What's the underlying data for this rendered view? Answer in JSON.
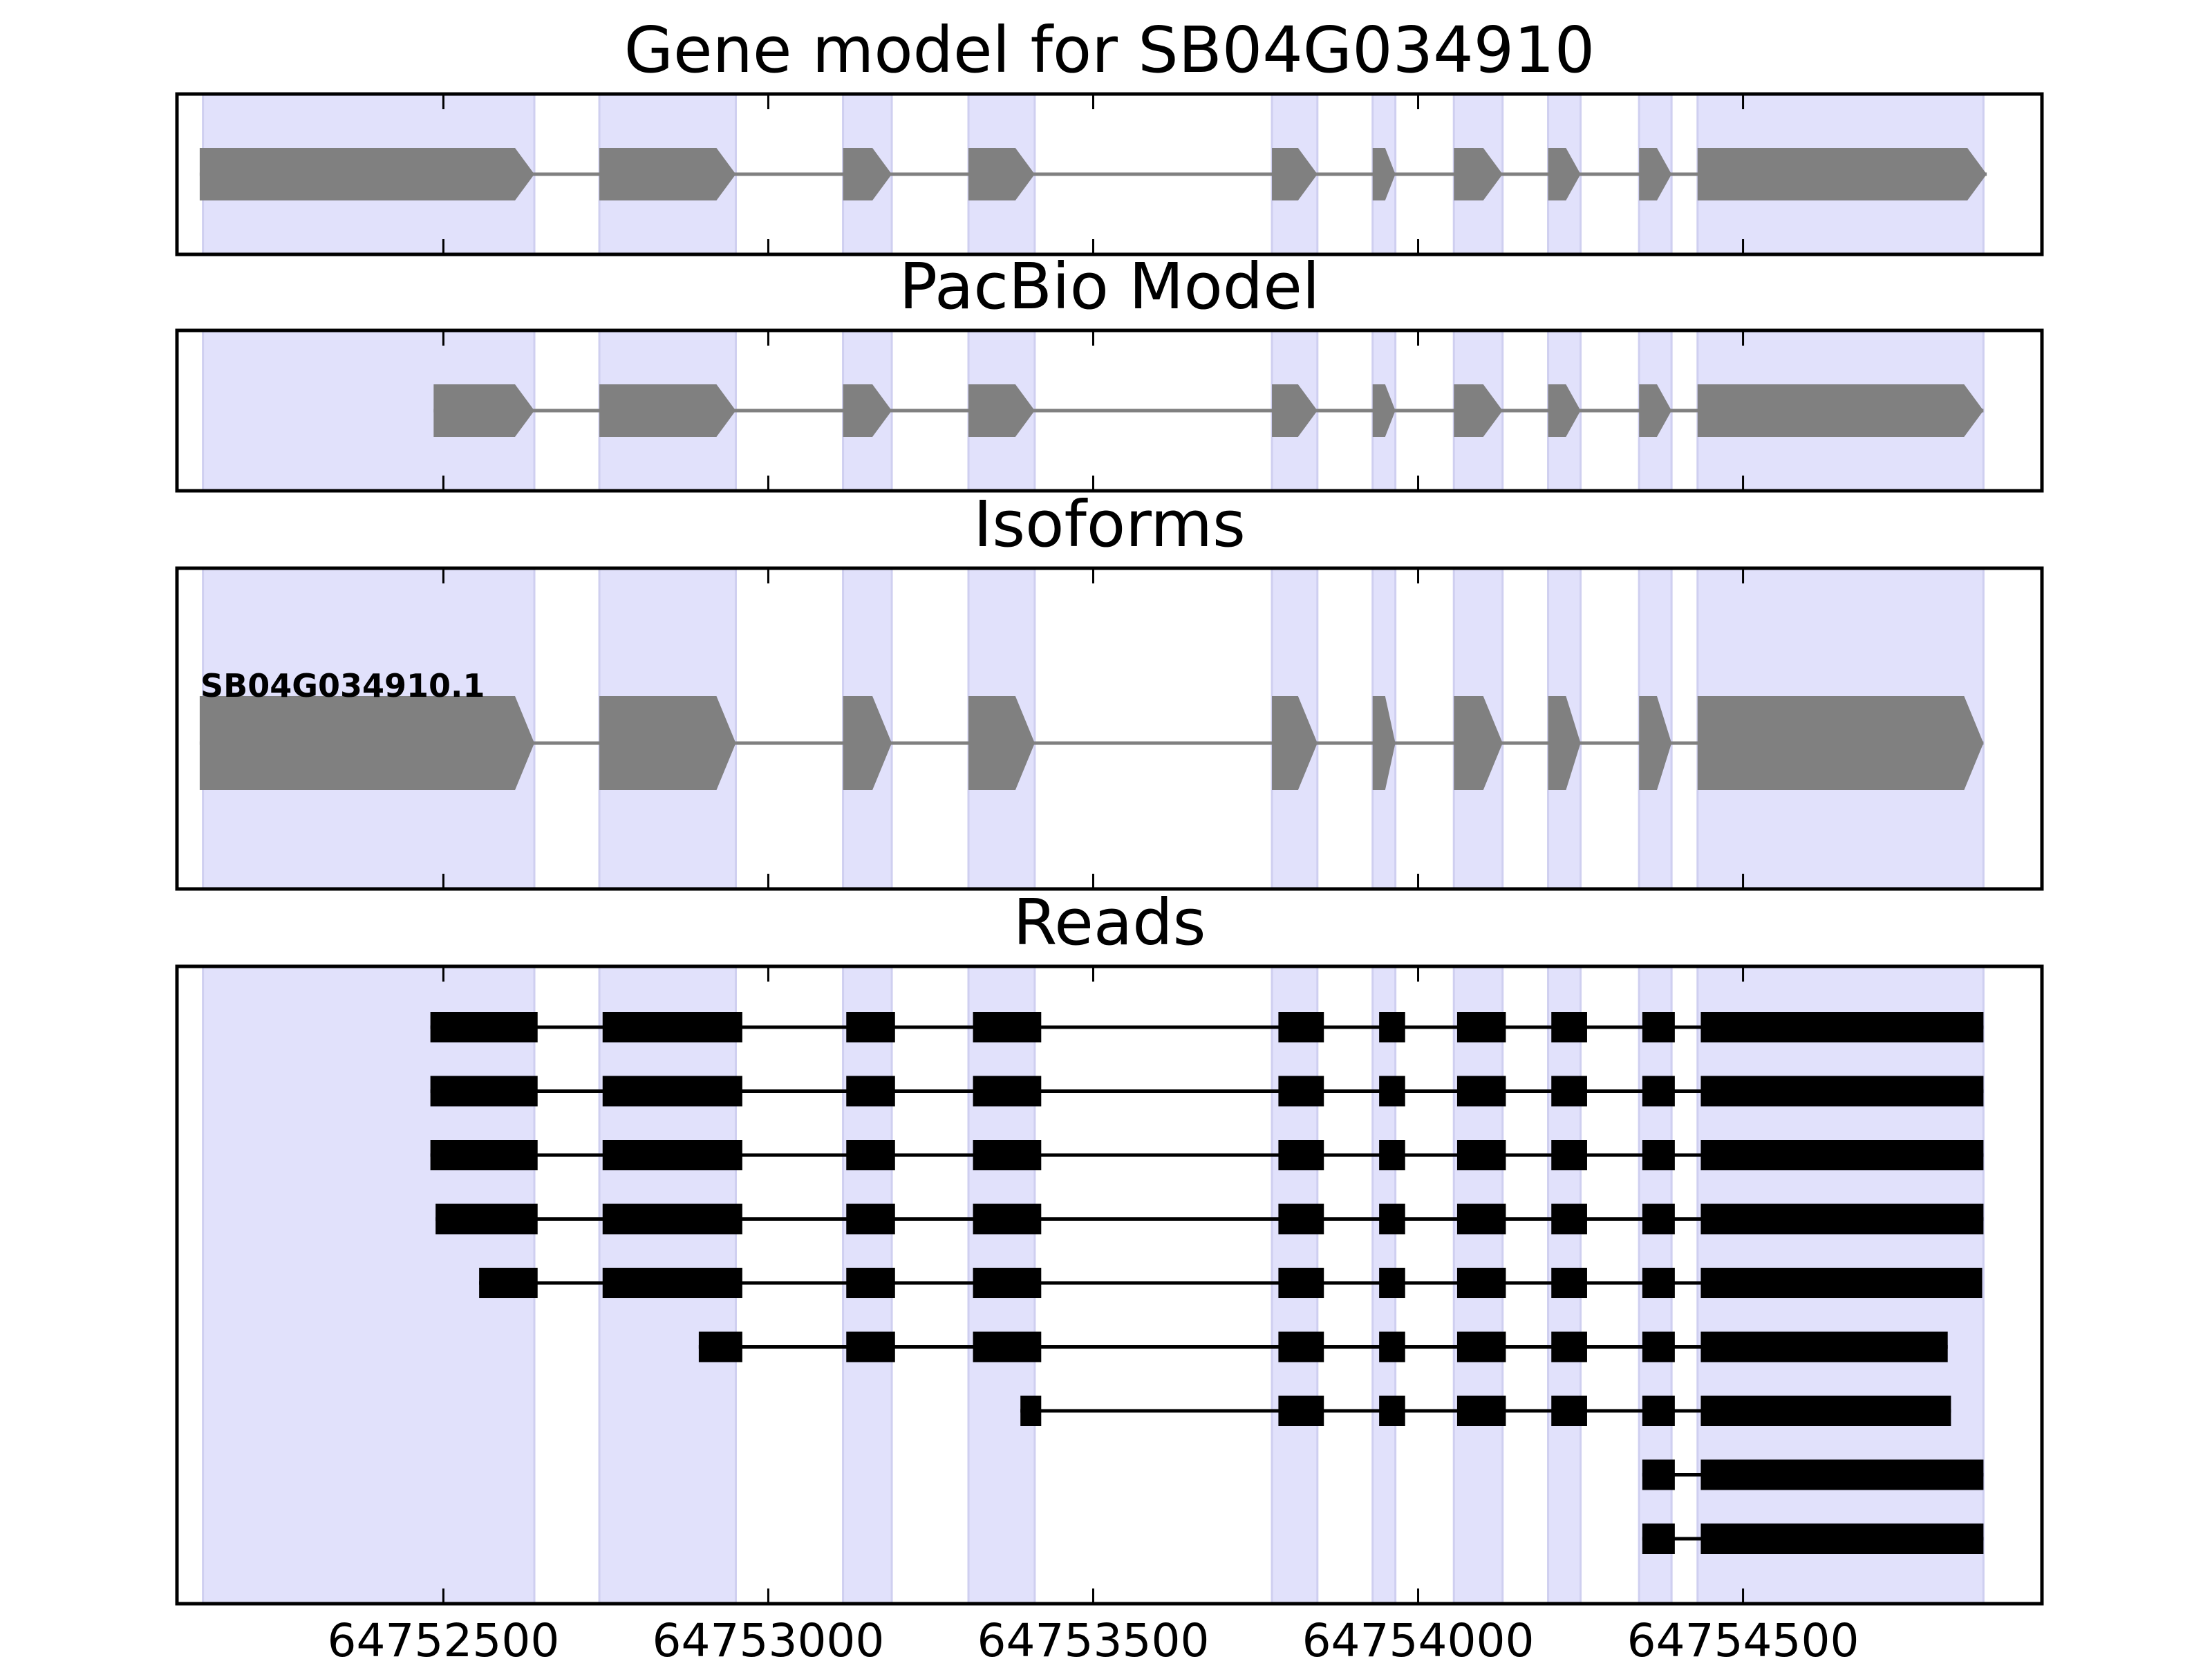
{
  "colors": {
    "exon_band": "#e1e1fb",
    "exon_band_edge": "#cfcff0",
    "gene_feature": "#808080",
    "intron_line": "#808080",
    "read_block": "#000000",
    "frame": "#000000"
  },
  "chart_data": {
    "type": "gene-model-tracks",
    "x_axis": {
      "range": [
        64752090,
        64754960
      ],
      "ticks": [
        64752500,
        64753000,
        64753500,
        64754000,
        64754500
      ],
      "tick_labels": [
        "64752500",
        "64753000",
        "64753500",
        "64754000",
        "64754500"
      ]
    },
    "exon_bands": [
      [
        64752130,
        64752640
      ],
      [
        64752740,
        64752950
      ],
      [
        64753115,
        64753190
      ],
      [
        64753308,
        64753410
      ],
      [
        64753775,
        64753845
      ],
      [
        64753930,
        64753965
      ],
      [
        64754055,
        64754130
      ],
      [
        64754200,
        64754250
      ],
      [
        64754340,
        64754390
      ],
      [
        64754430,
        64754870
      ]
    ],
    "panels": [
      {
        "title": "Gene model for SB04G034910",
        "kind": "features",
        "rows": [
          {
            "label": "",
            "exons": [
              [
                64752125,
                64752640
              ],
              [
                64752740,
                64752950
              ],
              [
                64753115,
                64753190
              ],
              [
                64753308,
                64753410
              ],
              [
                64753775,
                64753845
              ],
              [
                64753930,
                64753965
              ],
              [
                64754055,
                64754130
              ],
              [
                64754200,
                64754250
              ],
              [
                64754340,
                64754390
              ],
              [
                64754430,
                64754875
              ]
            ]
          }
        ]
      },
      {
        "title": "PacBio Model",
        "kind": "features",
        "rows": [
          {
            "label": "",
            "exons": [
              [
                64752485,
                64752640
              ],
              [
                64752740,
                64752950
              ],
              [
                64753115,
                64753190
              ],
              [
                64753308,
                64753410
              ],
              [
                64753775,
                64753845
              ],
              [
                64753930,
                64753965
              ],
              [
                64754055,
                64754130
              ],
              [
                64754200,
                64754250
              ],
              [
                64754340,
                64754390
              ],
              [
                64754430,
                64754870
              ]
            ]
          }
        ]
      },
      {
        "title": "Isoforms",
        "kind": "features",
        "rows": [
          {
            "label": "SB04G034910.1",
            "exons": [
              [
                64752125,
                64752640
              ],
              [
                64752740,
                64752950
              ],
              [
                64753115,
                64753190
              ],
              [
                64753308,
                64753410
              ],
              [
                64753775,
                64753845
              ],
              [
                64753930,
                64753965
              ],
              [
                64754055,
                64754130
              ],
              [
                64754200,
                64754250
              ],
              [
                64754340,
                64754390
              ],
              [
                64754430,
                64754870
              ]
            ]
          }
        ]
      },
      {
        "title": "Reads",
        "kind": "reads",
        "rows": [
          {
            "exons": [
              [
                64752480,
                64752645
              ],
              [
                64752745,
                64752960
              ],
              [
                64753120,
                64753195
              ],
              [
                64753315,
                64753420
              ],
              [
                64753785,
                64753855
              ],
              [
                64753940,
                64753980
              ],
              [
                64754060,
                64754135
              ],
              [
                64754205,
                64754260
              ],
              [
                64754345,
                64754395
              ],
              [
                64754435,
                64754870
              ]
            ]
          },
          {
            "exons": [
              [
                64752480,
                64752645
              ],
              [
                64752745,
                64752960
              ],
              [
                64753120,
                64753195
              ],
              [
                64753315,
                64753420
              ],
              [
                64753785,
                64753855
              ],
              [
                64753940,
                64753980
              ],
              [
                64754060,
                64754135
              ],
              [
                64754205,
                64754260
              ],
              [
                64754345,
                64754395
              ],
              [
                64754435,
                64754870
              ]
            ]
          },
          {
            "exons": [
              [
                64752480,
                64752645
              ],
              [
                64752745,
                64752960
              ],
              [
                64753120,
                64753195
              ],
              [
                64753315,
                64753420
              ],
              [
                64753785,
                64753855
              ],
              [
                64753940,
                64753980
              ],
              [
                64754060,
                64754135
              ],
              [
                64754205,
                64754260
              ],
              [
                64754345,
                64754395
              ],
              [
                64754435,
                64754870
              ]
            ]
          },
          {
            "exons": [
              [
                64752488,
                64752645
              ],
              [
                64752745,
                64752960
              ],
              [
                64753120,
                64753195
              ],
              [
                64753315,
                64753420
              ],
              [
                64753785,
                64753855
              ],
              [
                64753940,
                64753980
              ],
              [
                64754060,
                64754135
              ],
              [
                64754205,
                64754260
              ],
              [
                64754345,
                64754395
              ],
              [
                64754435,
                64754870
              ]
            ]
          },
          {
            "exons": [
              [
                64752555,
                64752645
              ],
              [
                64752745,
                64752960
              ],
              [
                64753120,
                64753195
              ],
              [
                64753315,
                64753420
              ],
              [
                64753785,
                64753855
              ],
              [
                64753940,
                64753980
              ],
              [
                64754060,
                64754135
              ],
              [
                64754205,
                64754260
              ],
              [
                64754345,
                64754395
              ],
              [
                64754435,
                64754868
              ]
            ]
          },
          {
            "exons": [
              [
                64752893,
                64752960
              ],
              [
                64753120,
                64753195
              ],
              [
                64753315,
                64753420
              ],
              [
                64753785,
                64753855
              ],
              [
                64753940,
                64753980
              ],
              [
                64754060,
                64754135
              ],
              [
                64754205,
                64754260
              ],
              [
                64754345,
                64754395
              ],
              [
                64754435,
                64754815
              ]
            ]
          },
          {
            "exons": [
              [
                64753388,
                64753420
              ],
              [
                64753785,
                64753855
              ],
              [
                64753940,
                64753980
              ],
              [
                64754060,
                64754135
              ],
              [
                64754205,
                64754260
              ],
              [
                64754345,
                64754395
              ],
              [
                64754435,
                64754820
              ]
            ]
          },
          {
            "exons": [
              [
                64754345,
                64754395
              ],
              [
                64754435,
                64754870
              ]
            ]
          },
          {
            "exons": [
              [
                64754345,
                64754395
              ],
              [
                64754435,
                64754870
              ]
            ]
          }
        ]
      }
    ]
  }
}
